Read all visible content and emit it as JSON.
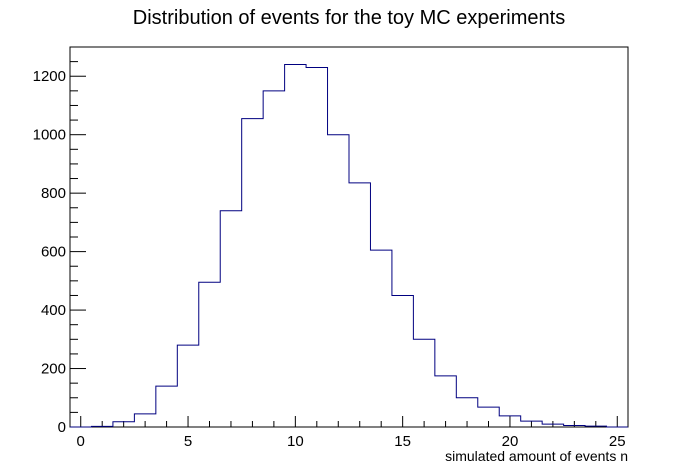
{
  "chart_data": {
    "type": "bar",
    "style": "step-histogram",
    "title": "Distribution of events for the toy MC experiments",
    "xlabel": "simulated amount of events n",
    "ylabel": "",
    "xlim": [
      -0.5,
      25.5
    ],
    "ylim": [
      0,
      1300
    ],
    "x_ticks": [
      0,
      5,
      10,
      15,
      20,
      25
    ],
    "y_ticks": [
      0,
      200,
      400,
      600,
      800,
      1000,
      1200
    ],
    "bin_width": 1,
    "bin_centers": [
      0,
      1,
      2,
      3,
      4,
      5,
      6,
      7,
      8,
      9,
      10,
      11,
      12,
      13,
      14,
      15,
      16,
      17,
      18,
      19,
      20,
      21,
      22,
      23,
      24,
      25
    ],
    "values": [
      0,
      2,
      18,
      45,
      140,
      280,
      495,
      740,
      1055,
      1150,
      1240,
      1230,
      1000,
      835,
      605,
      450,
      300,
      175,
      100,
      68,
      38,
      20,
      10,
      5,
      3,
      0
    ],
    "line_color": "#000080",
    "grid": false,
    "legend": "none"
  }
}
